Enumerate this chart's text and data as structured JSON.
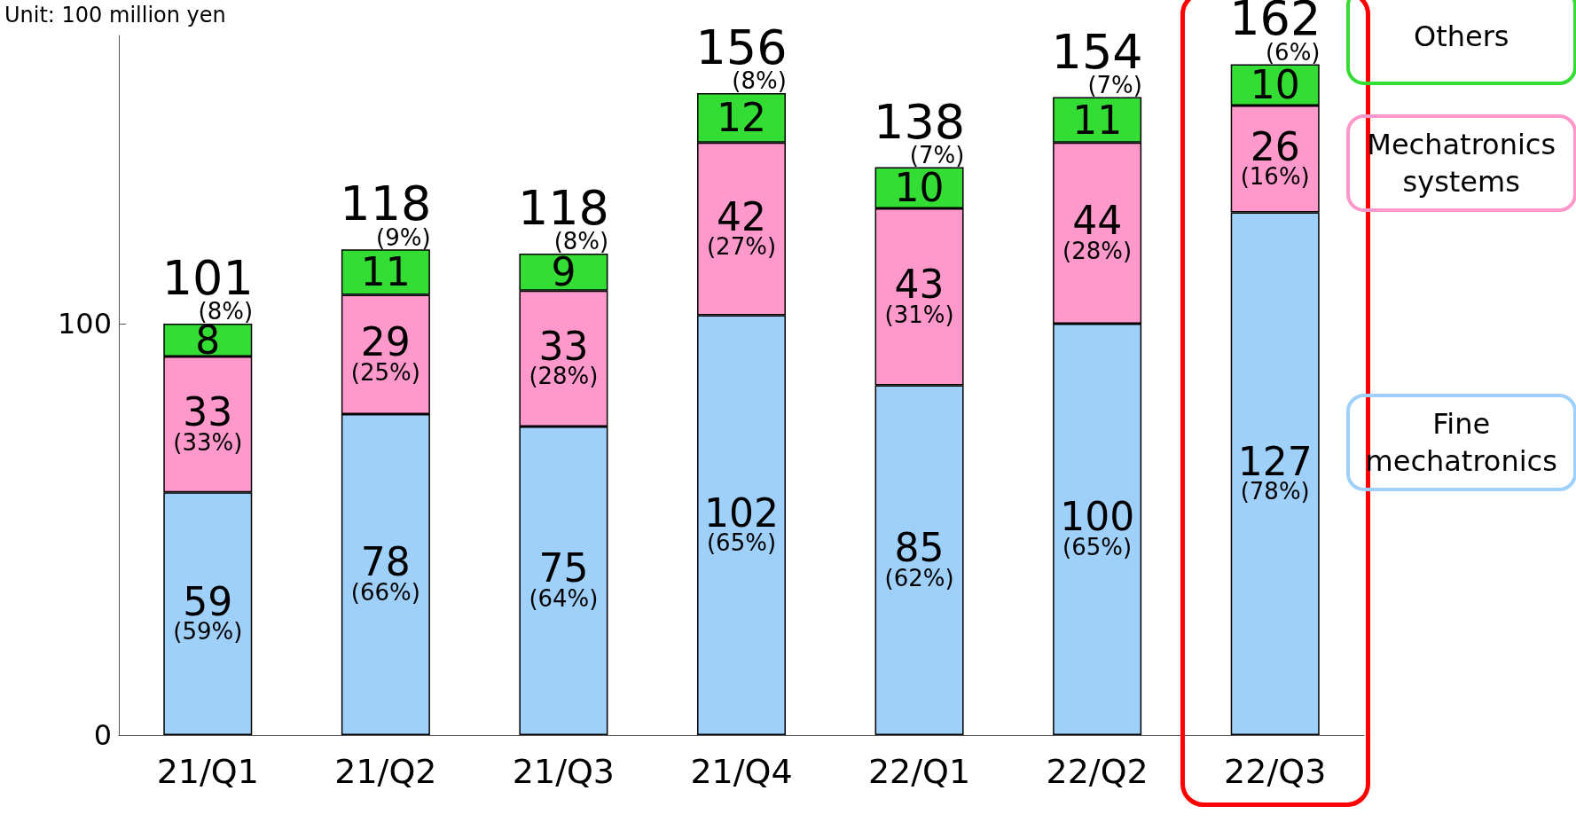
{
  "chart_data": {
    "type": "bar",
    "stacked": true,
    "title": "Unit: 100 million yen",
    "categories": [
      "21/Q1",
      "21/Q2",
      "21/Q3",
      "21/Q4",
      "22/Q1",
      "22/Q2",
      "22/Q3"
    ],
    "series": [
      {
        "name": "Fine mechatronics",
        "color": "#9fd0fa",
        "values": [
          59,
          78,
          75,
          102,
          85,
          100,
          127
        ],
        "value_labels": [
          "59\n(59%)",
          "78\n(66%)",
          "75\n(64%)",
          "102\n(65%)",
          "85\n(62%)",
          "100\n(65%)",
          "127\n(78%)"
        ]
      },
      {
        "name": "Mechatronics systems",
        "color": "#ff99cc",
        "values": [
          33,
          29,
          33,
          42,
          43,
          44,
          26
        ],
        "value_labels": [
          "33\n(33%)",
          "29\n(25%)",
          "33\n(28%)",
          "42\n(27%)",
          "43\n(31%)",
          "44\n(28%)",
          "26\n(16%)"
        ]
      },
      {
        "name": "Others",
        "color": "#33dd33",
        "values": [
          8,
          11,
          9,
          12,
          10,
          11,
          10
        ],
        "value_labels": [
          "8",
          "11",
          "9",
          "12",
          "10",
          "11",
          "10"
        ]
      }
    ],
    "totals": [
      "101\n(8%)",
      "118\n(9%)",
      "118\n(8%)",
      "156\n(8%)",
      "138\n(7%)",
      "154\n(7%)",
      "162\n(6%)"
    ],
    "ylim": [
      0,
      170
    ],
    "yticks": [
      0,
      100
    ],
    "grid": false,
    "legend": "right"
  }
}
